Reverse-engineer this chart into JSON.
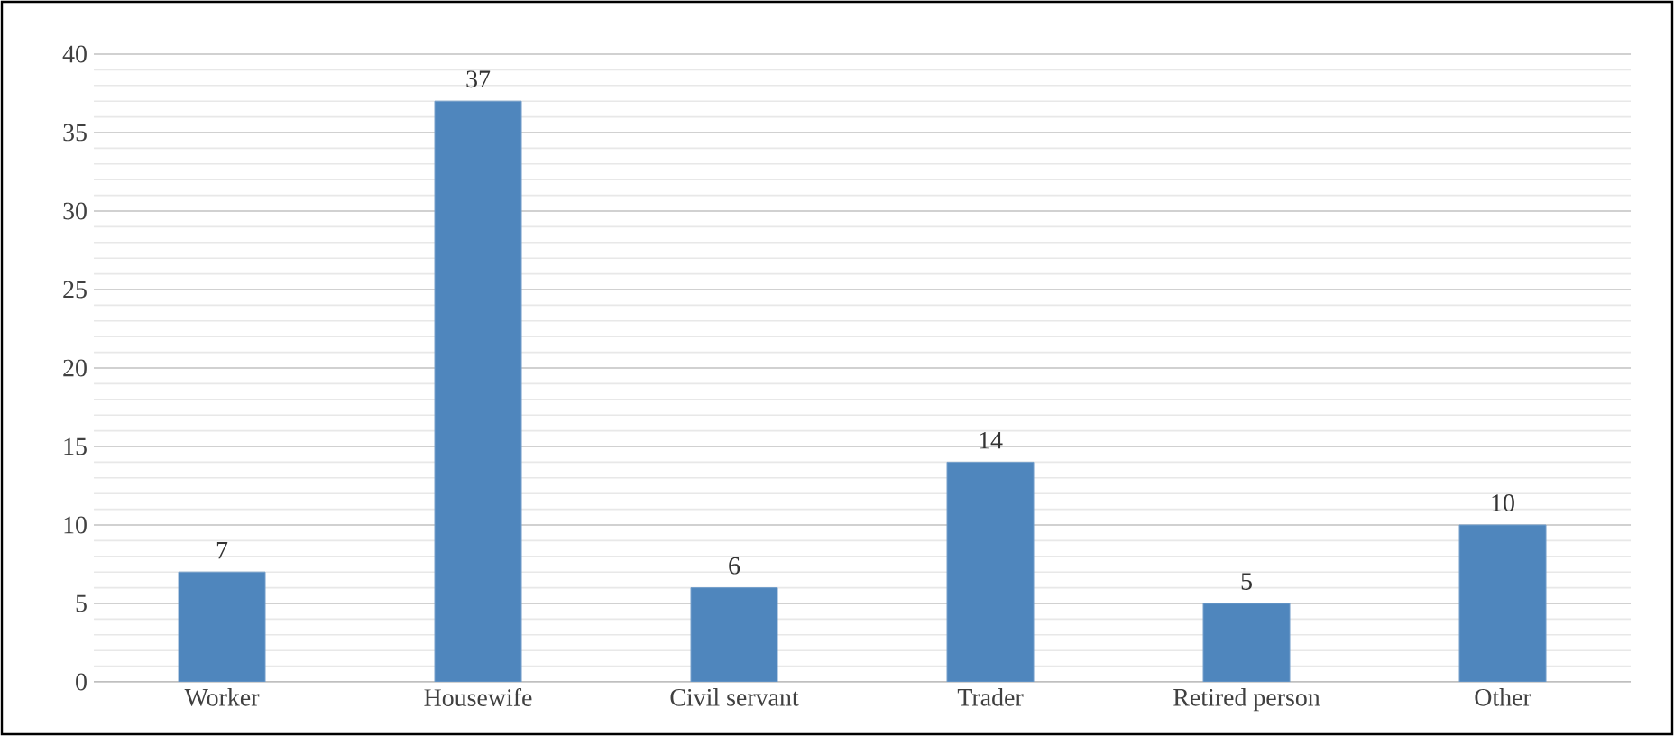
{
  "chart_data": {
    "type": "bar",
    "categories": [
      "Worker",
      "Housewife",
      "Civil servant",
      "Trader",
      "Retired person",
      "Other"
    ],
    "values": [
      7,
      37,
      6,
      14,
      5,
      10
    ],
    "color": "#4f86bd",
    "ylim": [
      0,
      40
    ],
    "yticks": [
      0,
      5,
      10,
      15,
      20,
      25,
      30,
      35,
      40
    ],
    "grid": "y",
    "data_labels": true
  }
}
